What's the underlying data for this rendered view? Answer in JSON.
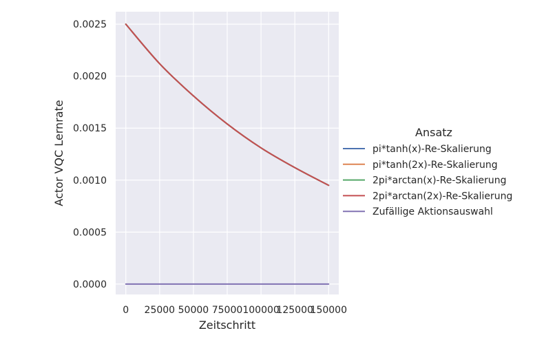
{
  "chart_data": {
    "type": "line",
    "xlabel": "Zeitschritt",
    "ylabel": "Actor VQC Lernrate",
    "xlim": [
      -7500,
      157500
    ],
    "ylim": [
      -0.0001,
      0.00262
    ],
    "xticks": [
      0,
      25000,
      50000,
      75000,
      100000,
      125000,
      150000
    ],
    "xtick_labels": [
      "0",
      "25000",
      "50000",
      "75000",
      "100000",
      "125000",
      "150000"
    ],
    "yticks": [
      0.0,
      0.0005,
      0.001,
      0.0015,
      0.002,
      0.0025
    ],
    "ytick_labels": [
      "0.0000",
      "0.0005",
      "0.0010",
      "0.0015",
      "0.0020",
      "0.0025"
    ],
    "grid": true,
    "legend_title": "Ansatz",
    "legend_position": "right-outside",
    "series": [
      {
        "name": "pi*tanh(x)-Re-Skalierung",
        "color": "#4c72b0",
        "x": [
          0,
          25000,
          50000,
          75000,
          100000,
          125000,
          150000
        ],
        "y": [
          0.0025,
          0.00212,
          0.00181,
          0.00154,
          0.00131,
          0.00112,
          0.00095
        ]
      },
      {
        "name": "pi*tanh(2x)-Re-Skalierung",
        "color": "#dd8452",
        "x": [
          0,
          25000,
          50000,
          75000,
          100000,
          125000,
          150000
        ],
        "y": [
          0.0025,
          0.00212,
          0.00181,
          0.00154,
          0.00131,
          0.00112,
          0.00095
        ]
      },
      {
        "name": "2pi*arctan(x)-Re-Skalierung",
        "color": "#55a868",
        "x": [
          0,
          25000,
          50000,
          75000,
          100000,
          125000,
          150000
        ],
        "y": [
          0.0025,
          0.00212,
          0.00181,
          0.00154,
          0.00131,
          0.00112,
          0.00095
        ]
      },
      {
        "name": "2pi*arctan(2x)-Re-Skalierung",
        "color": "#c44e52",
        "x": [
          0,
          25000,
          50000,
          75000,
          100000,
          125000,
          150000
        ],
        "y": [
          0.0025,
          0.00212,
          0.00181,
          0.00154,
          0.00131,
          0.00112,
          0.00095
        ]
      },
      {
        "name": "Zufällige Aktionsauswahl",
        "color": "#8172b3",
        "x": [
          0,
          150000
        ],
        "y": [
          0.0,
          0.0
        ]
      }
    ],
    "colors": {
      "plot_background": "#eaeaf2",
      "grid": "#ffffff",
      "text": "#262626"
    }
  }
}
